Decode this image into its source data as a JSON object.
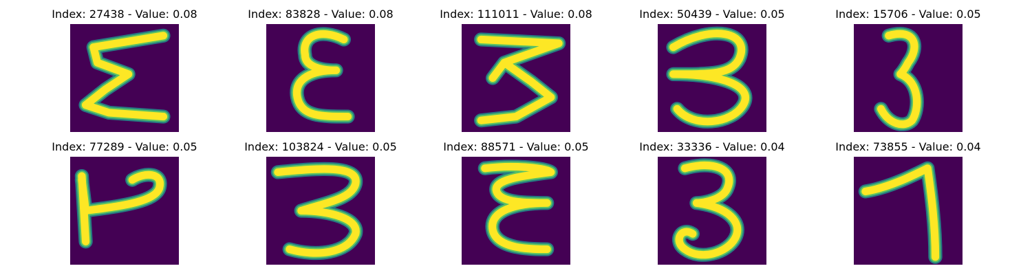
{
  "figure": {
    "background": "#ffffff"
  },
  "chart_data": {
    "type": "image-grid",
    "rows": 2,
    "columns": 5,
    "colormap": "viridis",
    "background_color": "#440154",
    "stroke_outer_color": "#21918c",
    "stroke_middle_color": "#5ec962",
    "stroke_inner_color": "#fde725",
    "panels": [
      {
        "title": "Index: 27438 - Value: 0.08",
        "index": 27438,
        "value": 0.08,
        "glyph": "sigma"
      },
      {
        "title": "Index: 83828 - Value: 0.08",
        "index": 83828,
        "value": 0.08,
        "glyph": "epsilon"
      },
      {
        "title": "Index: 111011 - Value: 0.08",
        "index": 111011,
        "value": 0.08,
        "glyph": "zigzag-3"
      },
      {
        "title": "Index: 50439 - Value: 0.05",
        "index": 50439,
        "value": 0.05,
        "glyph": "three-flat"
      },
      {
        "title": "Index: 15706 - Value: 0.05",
        "index": 15706,
        "value": 0.05,
        "glyph": "three-narrow"
      },
      {
        "title": "Index: 77289 - Value: 0.05",
        "index": 77289,
        "value": 0.05,
        "glyph": "hook"
      },
      {
        "title": "Index: 103824 - Value: 0.05",
        "index": 103824,
        "value": 0.05,
        "glyph": "three-wide"
      },
      {
        "title": "Index: 88571 - Value: 0.05",
        "index": 88571,
        "value": 0.05,
        "glyph": "epsilon-double"
      },
      {
        "title": "Index: 33336 - Value: 0.04",
        "index": 33336,
        "value": 0.04,
        "glyph": "three-curly"
      },
      {
        "title": "Index: 73855 - Value: 0.04",
        "index": 73855,
        "value": 0.04,
        "glyph": "seven"
      }
    ]
  }
}
